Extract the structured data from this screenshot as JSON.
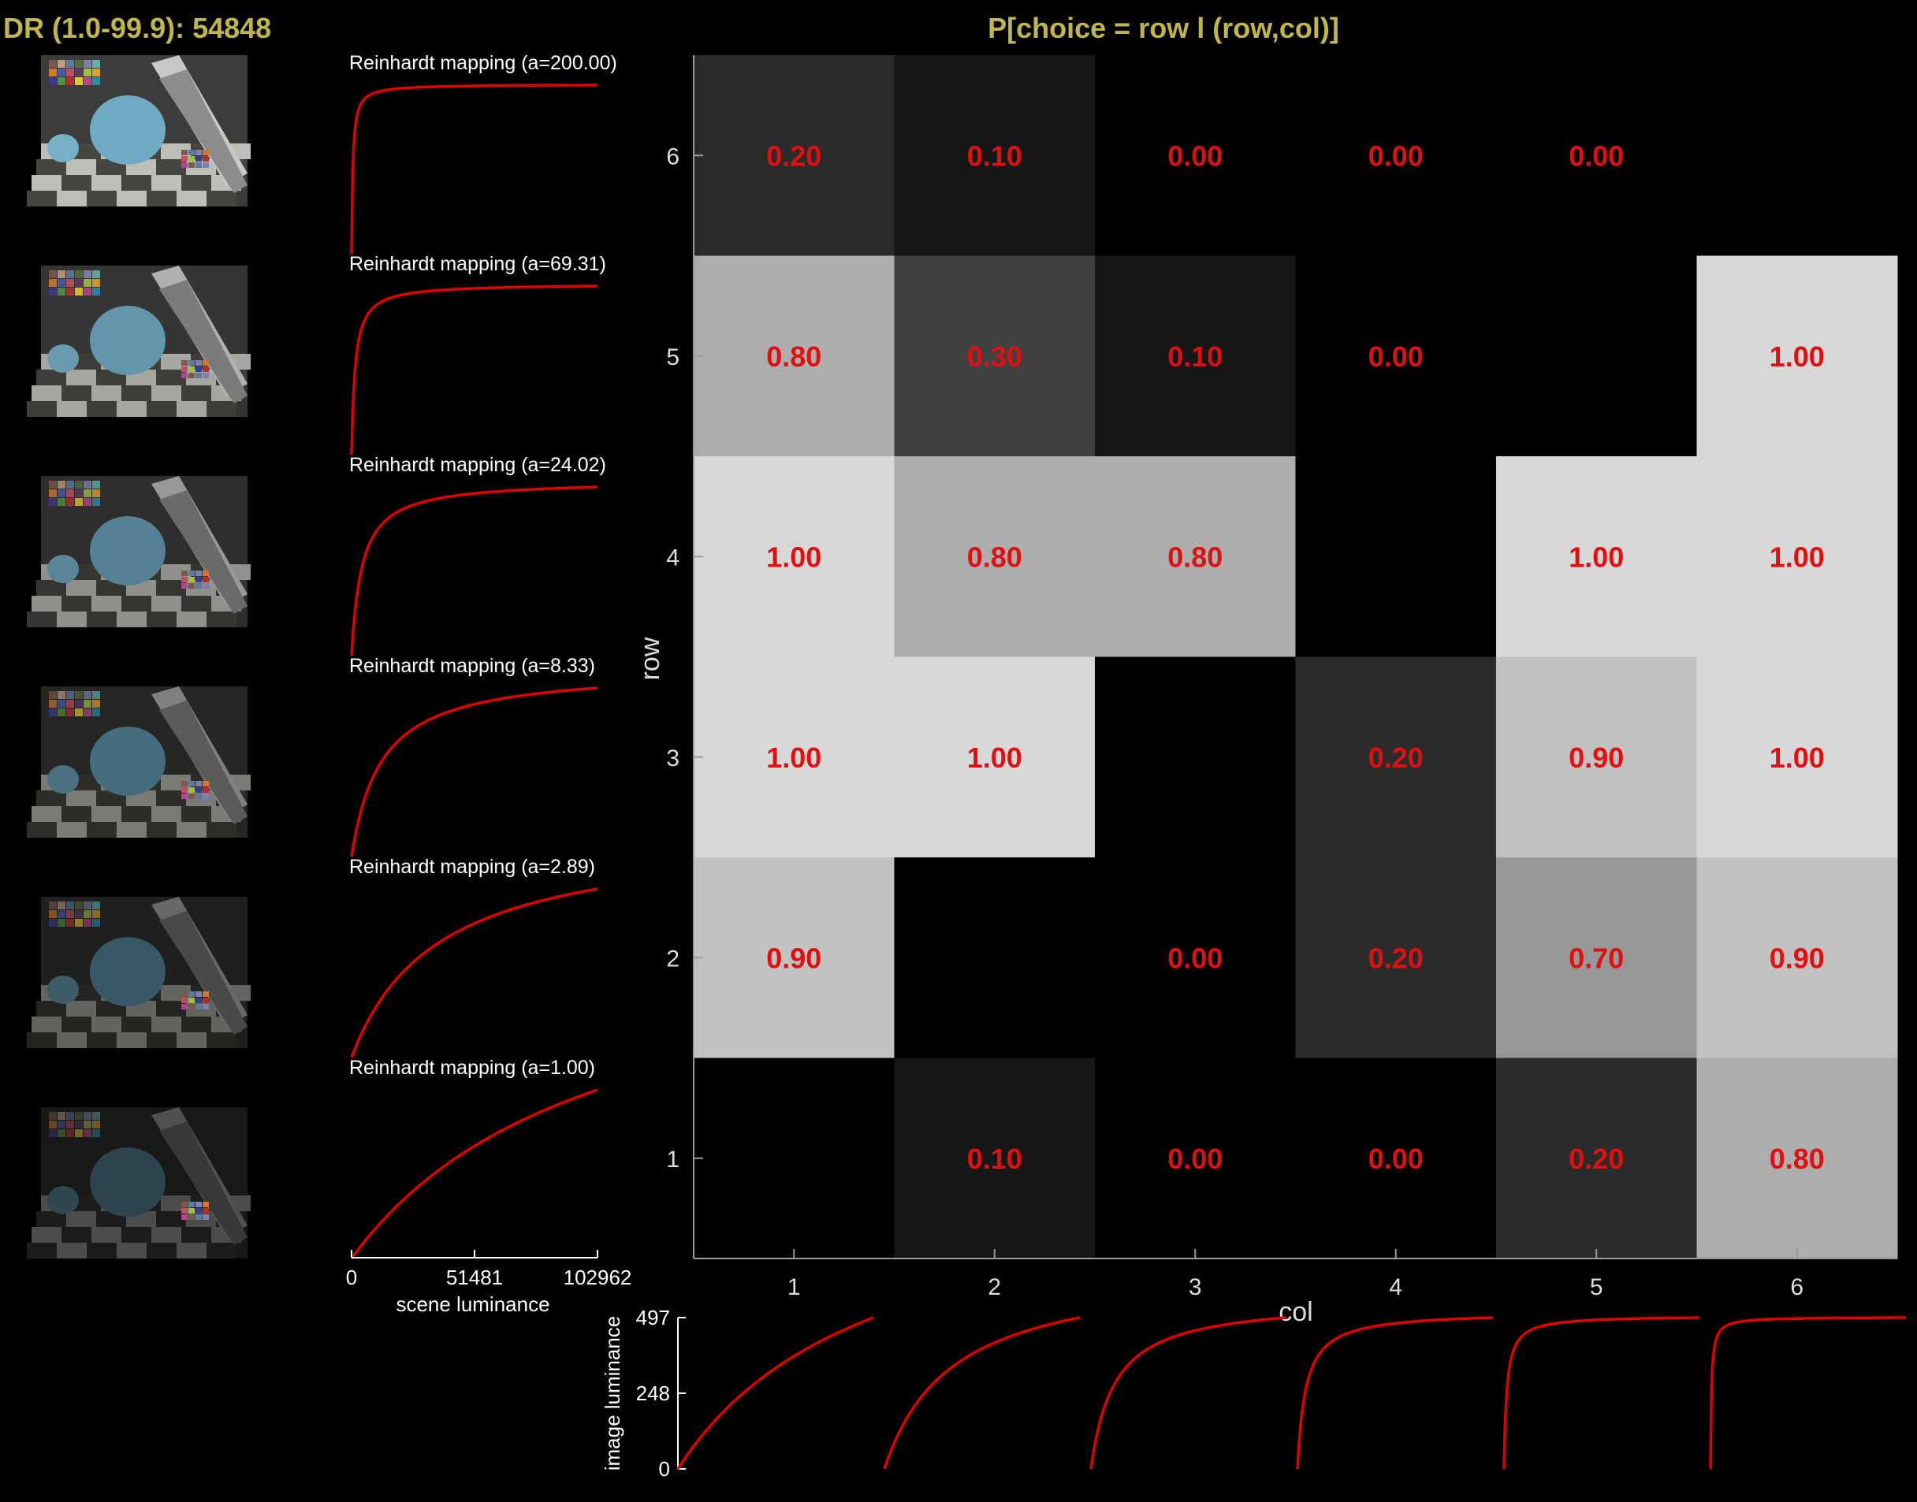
{
  "header": {
    "dr_label": "DR (1.0-99.9): 54848"
  },
  "chart_data": [
    {
      "type": "line",
      "role": "tone-mapping-curves",
      "titles": [
        "Reinhardt mapping (a=200.00)",
        "Reinhardt mapping (a=69.31)",
        "Reinhardt mapping (a=24.02)",
        "Reinhardt mapping (a=8.33)",
        "Reinhardt mapping (a=2.89)",
        "Reinhardt mapping (a=1.00)"
      ],
      "a_values": [
        200.0,
        69.31,
        24.02,
        8.33,
        2.89,
        1.0
      ],
      "xlabel": "scene luminance",
      "x_ticks": [
        "0",
        "51481",
        "102962"
      ],
      "xlim": [
        0,
        102962
      ],
      "color": "#e00000"
    },
    {
      "type": "heatmap",
      "title": "P[choice = row l (row,col)]",
      "xlabel": "col",
      "ylabel": "row",
      "x_ticks": [
        "1",
        "2",
        "3",
        "4",
        "5",
        "6"
      ],
      "y_ticks": [
        "1",
        "2",
        "3",
        "4",
        "5",
        "6"
      ],
      "rows": [
        6,
        5,
        4,
        3,
        2,
        1
      ],
      "values": [
        [
          0.2,
          0.1,
          0.0,
          0.0,
          0.0,
          null
        ],
        [
          0.8,
          0.3,
          0.1,
          0.0,
          null,
          1.0
        ],
        [
          1.0,
          0.8,
          0.8,
          null,
          1.0,
          1.0
        ],
        [
          1.0,
          1.0,
          null,
          0.2,
          0.9,
          1.0
        ],
        [
          0.9,
          null,
          0.0,
          0.2,
          0.7,
          0.9
        ],
        [
          null,
          0.1,
          0.0,
          0.0,
          0.2,
          0.8
        ]
      ],
      "labels": [
        [
          "0.20",
          "0.10",
          "0.00",
          "0.00",
          "0.00",
          ""
        ],
        [
          "0.80",
          "0.30",
          "0.10",
          "0.00",
          "",
          "1.00"
        ],
        [
          "1.00",
          "0.80",
          "0.80",
          "",
          "1.00",
          "1.00"
        ],
        [
          "1.00",
          "1.00",
          "",
          "0.20",
          "0.90",
          "1.00"
        ],
        [
          "0.90",
          "",
          "0.00",
          "0.20",
          "0.70",
          "0.90"
        ],
        [
          "",
          "0.10",
          "0.00",
          "0.00",
          "0.20",
          "0.80"
        ]
      ],
      "label_color": "#e01010"
    },
    {
      "type": "line",
      "role": "column-mapping-curves",
      "ylabel": "image luminance",
      "y_ticks": [
        "0",
        "248",
        "497"
      ],
      "ylim": [
        0,
        497
      ],
      "a_values": [
        1.0,
        2.89,
        8.33,
        24.02,
        69.31,
        200.0
      ],
      "color": "#e00000"
    }
  ]
}
